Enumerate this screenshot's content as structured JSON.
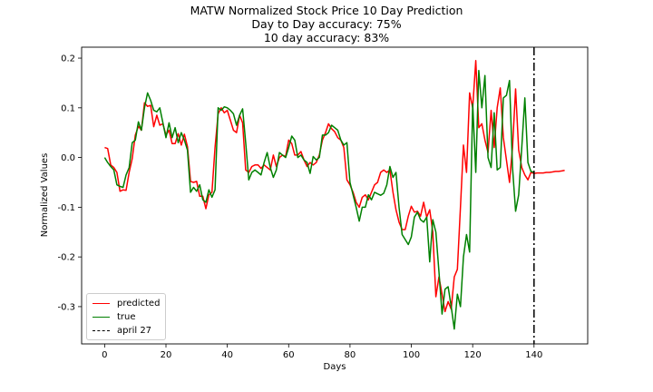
{
  "chart_data": {
    "type": "line",
    "title_lines": [
      "MATW Normalized Stock Price 10 Day Prediction",
      "Day to Day accuracy: 75%",
      "10 day accuracy: 83%"
    ],
    "xlabel": "Days",
    "ylabel": "Normalized Values",
    "xlim": [
      -7.5,
      157.5
    ],
    "ylim": [
      -0.375,
      0.222
    ],
    "xticks": [
      0,
      20,
      40,
      60,
      80,
      100,
      120,
      140
    ],
    "yticks": [
      -0.3,
      -0.2,
      -0.1,
      0.0,
      0.1,
      0.2
    ],
    "ytick_labels": [
      "-0.3",
      "-0.2",
      "-0.1",
      "0.0",
      "0.1",
      "0.2"
    ],
    "grid": false,
    "legend_position": "lower-left",
    "vline": {
      "x": 140,
      "name": "april 27",
      "color": "#000000",
      "style": "dash-dot"
    },
    "series": [
      {
        "name": "predicted",
        "color": "#ff0000",
        "x": [
          0,
          1,
          2,
          3,
          4,
          5,
          6,
          7,
          8,
          9,
          10,
          11,
          12,
          13,
          14,
          15,
          16,
          17,
          18,
          19,
          20,
          21,
          22,
          23,
          24,
          25,
          26,
          27,
          28,
          29,
          30,
          31,
          32,
          33,
          34,
          35,
          36,
          37,
          38,
          39,
          40,
          41,
          42,
          43,
          44,
          45,
          46,
          47,
          48,
          49,
          50,
          51,
          52,
          53,
          54,
          55,
          56,
          57,
          58,
          59,
          60,
          61,
          62,
          63,
          64,
          65,
          66,
          67,
          68,
          69,
          70,
          71,
          72,
          73,
          74,
          75,
          76,
          77,
          78,
          79,
          80,
          81,
          82,
          83,
          84,
          85,
          86,
          87,
          88,
          89,
          90,
          91,
          92,
          93,
          94,
          95,
          96,
          97,
          98,
          99,
          100,
          101,
          102,
          103,
          104,
          105,
          106,
          107,
          108,
          109,
          110,
          111,
          112,
          113,
          114,
          115,
          116,
          117,
          118,
          119,
          120,
          121,
          122,
          123,
          124,
          125,
          126,
          127,
          128,
          129,
          130,
          131,
          132,
          133,
          134,
          135,
          136,
          137,
          138,
          139,
          140,
          141,
          142,
          143,
          144,
          145,
          146,
          147,
          148,
          149,
          150
        ],
        "values": [
          0.02,
          0.018,
          -0.015,
          -0.02,
          -0.03,
          -0.068,
          -0.065,
          -0.066,
          -0.03,
          -0.002,
          0.045,
          0.063,
          0.055,
          0.11,
          0.103,
          0.105,
          0.062,
          0.085,
          0.065,
          0.068,
          0.045,
          0.055,
          0.028,
          0.028,
          0.048,
          0.025,
          0.047,
          0.022,
          -0.048,
          -0.05,
          -0.048,
          -0.078,
          -0.078,
          -0.103,
          -0.075,
          -0.07,
          0.02,
          0.088,
          0.1,
          0.09,
          0.095,
          0.075,
          0.055,
          0.05,
          0.085,
          0.07,
          -0.025,
          -0.03,
          -0.018,
          -0.015,
          -0.015,
          -0.022,
          -0.015,
          -0.02,
          -0.025,
          0.005,
          -0.018,
          0.0,
          0.005,
          0.002,
          0.035,
          0.028,
          0.005,
          0.005,
          0.012,
          -0.005,
          -0.018,
          -0.01,
          -0.015,
          -0.01,
          0.005,
          0.035,
          0.05,
          0.068,
          0.058,
          0.052,
          0.04,
          0.035,
          0.02,
          -0.045,
          -0.055,
          -0.07,
          -0.09,
          -0.1,
          -0.08,
          -0.075,
          -0.085,
          -0.07,
          -0.055,
          -0.05,
          -0.03,
          -0.025,
          -0.03,
          -0.025,
          -0.07,
          -0.105,
          -0.13,
          -0.145,
          -0.145,
          -0.118,
          -0.098,
          -0.11,
          -0.108,
          -0.118,
          -0.09,
          -0.12,
          -0.105,
          -0.15,
          -0.28,
          -0.24,
          -0.275,
          -0.31,
          -0.29,
          -0.305,
          -0.24,
          -0.225,
          -0.1,
          0.025,
          -0.03,
          0.13,
          0.1,
          0.195,
          0.06,
          0.068,
          0.035,
          0.01,
          0.095,
          0.02,
          0.1,
          0.14,
          0.04,
          -0.005,
          -0.05,
          0.02,
          0.138,
          0.015,
          -0.02,
          -0.035,
          -0.045,
          -0.03,
          -0.032,
          -0.031,
          -0.031,
          -0.031,
          -0.03,
          -0.03,
          -0.029,
          -0.028,
          -0.028,
          -0.027,
          -0.026
        ]
      },
      {
        "name": "true",
        "color": "#008000",
        "x": [
          0,
          1,
          2,
          3,
          4,
          5,
          6,
          7,
          8,
          9,
          10,
          11,
          12,
          13,
          14,
          15,
          16,
          17,
          18,
          19,
          20,
          21,
          22,
          23,
          24,
          25,
          26,
          27,
          28,
          29,
          30,
          31,
          32,
          33,
          34,
          35,
          36,
          37,
          38,
          39,
          40,
          41,
          42,
          43,
          44,
          45,
          46,
          47,
          48,
          49,
          50,
          51,
          52,
          53,
          54,
          55,
          56,
          57,
          58,
          59,
          60,
          61,
          62,
          63,
          64,
          65,
          66,
          67,
          68,
          69,
          70,
          71,
          72,
          73,
          74,
          75,
          76,
          77,
          78,
          79,
          80,
          81,
          82,
          83,
          84,
          85,
          86,
          87,
          88,
          89,
          90,
          91,
          92,
          93,
          94,
          95,
          96,
          97,
          98,
          99,
          100,
          101,
          102,
          103,
          104,
          105,
          106,
          107,
          108,
          109,
          110,
          111,
          112,
          113,
          114,
          115,
          116,
          117,
          118,
          119,
          120,
          121,
          122,
          123,
          124,
          125,
          126,
          127,
          128,
          129,
          130,
          131,
          132,
          133,
          134,
          135,
          136,
          137,
          138,
          139,
          140
        ],
        "values": [
          0.0,
          -0.01,
          -0.018,
          -0.025,
          -0.055,
          -0.058,
          -0.06,
          -0.035,
          -0.02,
          0.03,
          0.035,
          0.072,
          0.055,
          0.1,
          0.13,
          0.115,
          0.095,
          0.092,
          0.1,
          0.07,
          0.04,
          0.07,
          0.04,
          0.06,
          0.03,
          0.05,
          0.035,
          0.015,
          -0.07,
          -0.06,
          -0.068,
          -0.055,
          -0.085,
          -0.09,
          -0.065,
          -0.08,
          -0.065,
          0.1,
          0.095,
          0.102,
          0.1,
          0.095,
          0.088,
          0.065,
          0.085,
          0.098,
          0.03,
          -0.045,
          -0.03,
          -0.025,
          -0.03,
          -0.035,
          -0.01,
          0.01,
          -0.02,
          -0.04,
          -0.025,
          0.01,
          0.005,
          0.0,
          0.02,
          0.043,
          0.035,
          0.0,
          0.005,
          -0.005,
          -0.01,
          -0.032,
          0.002,
          -0.005,
          0.0,
          0.045,
          0.045,
          0.05,
          0.065,
          0.06,
          0.055,
          0.035,
          0.025,
          0.03,
          -0.05,
          -0.075,
          -0.1,
          -0.128,
          -0.1,
          -0.1,
          -0.075,
          -0.085,
          -0.07,
          -0.073,
          -0.076,
          -0.072,
          -0.055,
          -0.018,
          -0.04,
          -0.03,
          -0.1,
          -0.155,
          -0.165,
          -0.175,
          -0.16,
          -0.12,
          -0.11,
          -0.125,
          -0.13,
          -0.12,
          -0.21,
          -0.125,
          -0.15,
          -0.23,
          -0.315,
          -0.265,
          -0.26,
          -0.3,
          -0.345,
          -0.275,
          -0.3,
          -0.2,
          -0.155,
          -0.19,
          0.108,
          -0.03,
          0.175,
          0.1,
          0.165,
          0.0,
          -0.02,
          0.09,
          -0.025,
          -0.02,
          0.12,
          0.125,
          0.155,
          -0.02,
          -0.108,
          -0.075,
          0.02,
          0.12,
          -0.01,
          -0.028,
          -0.03
        ]
      }
    ]
  }
}
